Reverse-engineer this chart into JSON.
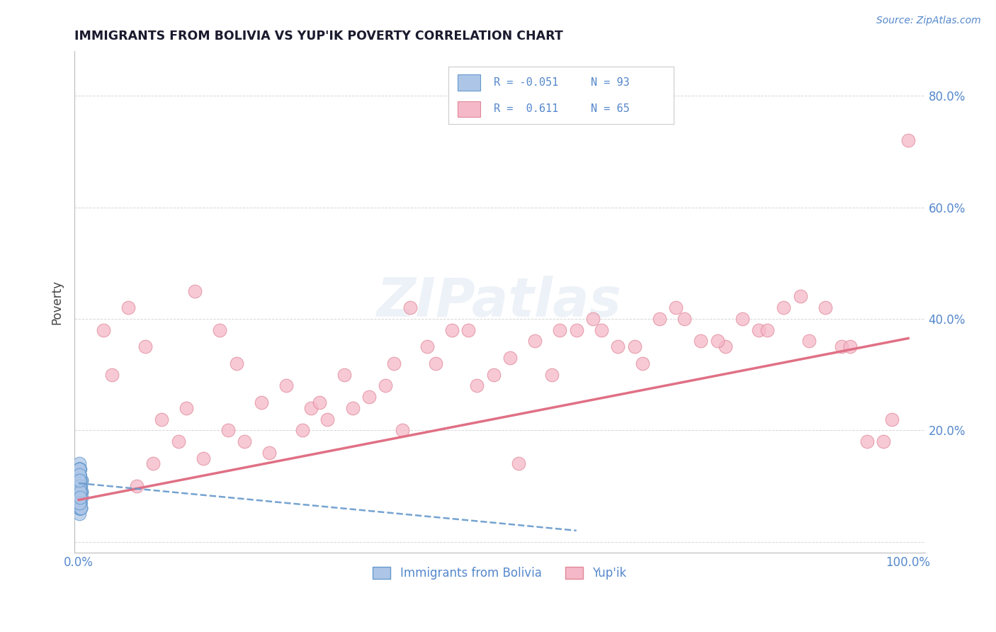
{
  "title": "IMMIGRANTS FROM BOLIVIA VS YUP'IK POVERTY CORRELATION CHART",
  "source": "Source: ZipAtlas.com",
  "ylabel": "Poverty",
  "xlim": [
    -0.005,
    1.02
  ],
  "ylim": [
    -0.02,
    0.88
  ],
  "legend_text": [
    [
      "R = -0.051",
      "N = 93"
    ],
    [
      "R =  0.611",
      "N = 65"
    ]
  ],
  "series1_name": "Immigrants from Bolivia",
  "series2_name": "Yup'ik",
  "series1_fill": "#adc6e8",
  "series2_fill": "#f5b8c8",
  "series1_edge": "#6699cc",
  "series2_edge": "#e08898",
  "trend1_color": "#6699cc",
  "trend2_color": "#e07085",
  "background_color": "#ffffff",
  "grid_color": "#cccccc",
  "watermark": "ZIPatlas",
  "title_color": "#1a1a2e",
  "ylabel_color": "#444444",
  "tick_color": "#5588cc",
  "source_color": "#5588cc",
  "bolivia_x": [
    0.0005,
    0.001,
    0.0008,
    0.0015,
    0.001,
    0.0005,
    0.002,
    0.0015,
    0.001,
    0.0005,
    0.0025,
    0.001,
    0.0005,
    0.0015,
    0.001,
    0.003,
    0.0005,
    0.001,
    0.0015,
    0.0005,
    0.001,
    0.002,
    0.0005,
    0.0015,
    0.001,
    0.0005,
    0.0025,
    0.001,
    0.0005,
    0.0015,
    0.0035,
    0.001,
    0.0005,
    0.002,
    0.0015,
    0.001,
    0.0005,
    0.003,
    0.001,
    0.0005,
    0.0015,
    0.001,
    0.0025,
    0.0005,
    0.001,
    0.002,
    0.0015,
    0.0005,
    0.001,
    0.003,
    0.0005,
    0.0015,
    0.001,
    0.002,
    0.0005,
    0.001,
    0.0025,
    0.0015,
    0.0005,
    0.001,
    0.002,
    0.0015,
    0.001,
    0.0005,
    0.003,
    0.001,
    0.0015,
    0.0005,
    0.002,
    0.001,
    0.0005,
    0.0015,
    0.0025,
    0.001,
    0.0005,
    0.0015,
    0.001,
    0.002,
    0.0005,
    0.001,
    0.0015,
    0.0005,
    0.001,
    0.002,
    0.0015,
    0.001,
    0.0005,
    0.0025,
    0.001,
    0.0015,
    0.0005,
    0.001,
    0.002
  ],
  "bolivia_y": [
    0.12,
    0.09,
    0.07,
    0.11,
    0.08,
    0.14,
    0.06,
    0.1,
    0.13,
    0.05,
    0.09,
    0.12,
    0.08,
    0.07,
    0.1,
    0.11,
    0.06,
    0.13,
    0.09,
    0.07,
    0.08,
    0.1,
    0.12,
    0.09,
    0.06,
    0.11,
    0.08,
    0.13,
    0.07,
    0.1,
    0.09,
    0.12,
    0.08,
    0.06,
    0.11,
    0.1,
    0.07,
    0.09,
    0.13,
    0.08,
    0.06,
    0.11,
    0.1,
    0.12,
    0.08,
    0.07,
    0.09,
    0.13,
    0.06,
    0.11,
    0.1,
    0.08,
    0.12,
    0.07,
    0.09,
    0.11,
    0.06,
    0.13,
    0.08,
    0.1,
    0.07,
    0.09,
    0.12,
    0.11,
    0.08,
    0.06,
    0.1,
    0.13,
    0.07,
    0.09,
    0.11,
    0.08,
    0.06,
    0.12,
    0.1,
    0.09,
    0.07,
    0.11,
    0.08,
    0.13,
    0.06,
    0.1,
    0.09,
    0.07,
    0.11,
    0.08,
    0.12,
    0.06,
    0.1,
    0.09,
    0.07,
    0.11,
    0.08
  ],
  "yupik_x": [
    0.03,
    0.07,
    0.04,
    0.09,
    0.12,
    0.06,
    0.15,
    0.1,
    0.18,
    0.22,
    0.08,
    0.25,
    0.2,
    0.28,
    0.14,
    0.32,
    0.35,
    0.17,
    0.38,
    0.3,
    0.42,
    0.45,
    0.23,
    0.48,
    0.4,
    0.52,
    0.55,
    0.27,
    0.58,
    0.5,
    0.62,
    0.65,
    0.33,
    0.68,
    0.6,
    0.72,
    0.75,
    0.37,
    0.78,
    0.7,
    0.82,
    0.85,
    0.43,
    0.88,
    0.8,
    0.92,
    0.95,
    0.47,
    0.98,
    0.9,
    0.53,
    0.57,
    1.0,
    0.63,
    0.67,
    0.73,
    0.77,
    0.83,
    0.87,
    0.93,
    0.97,
    0.13,
    0.19,
    0.29,
    0.39
  ],
  "yupik_y": [
    0.38,
    0.1,
    0.3,
    0.14,
    0.18,
    0.42,
    0.15,
    0.22,
    0.2,
    0.25,
    0.35,
    0.28,
    0.18,
    0.24,
    0.45,
    0.3,
    0.26,
    0.38,
    0.32,
    0.22,
    0.35,
    0.38,
    0.16,
    0.28,
    0.42,
    0.33,
    0.36,
    0.2,
    0.38,
    0.3,
    0.4,
    0.35,
    0.24,
    0.32,
    0.38,
    0.42,
    0.36,
    0.28,
    0.35,
    0.4,
    0.38,
    0.42,
    0.32,
    0.36,
    0.4,
    0.35,
    0.18,
    0.38,
    0.22,
    0.42,
    0.14,
    0.3,
    0.72,
    0.38,
    0.35,
    0.4,
    0.36,
    0.38,
    0.44,
    0.35,
    0.18,
    0.24,
    0.32,
    0.25,
    0.2
  ],
  "trend1_x0": 0.0,
  "trend1_x1": 0.6,
  "trend1_y0": 0.105,
  "trend1_y1": 0.02,
  "trend2_x0": 0.0,
  "trend2_x1": 1.0,
  "trend2_y0": 0.075,
  "trend2_y1": 0.365
}
